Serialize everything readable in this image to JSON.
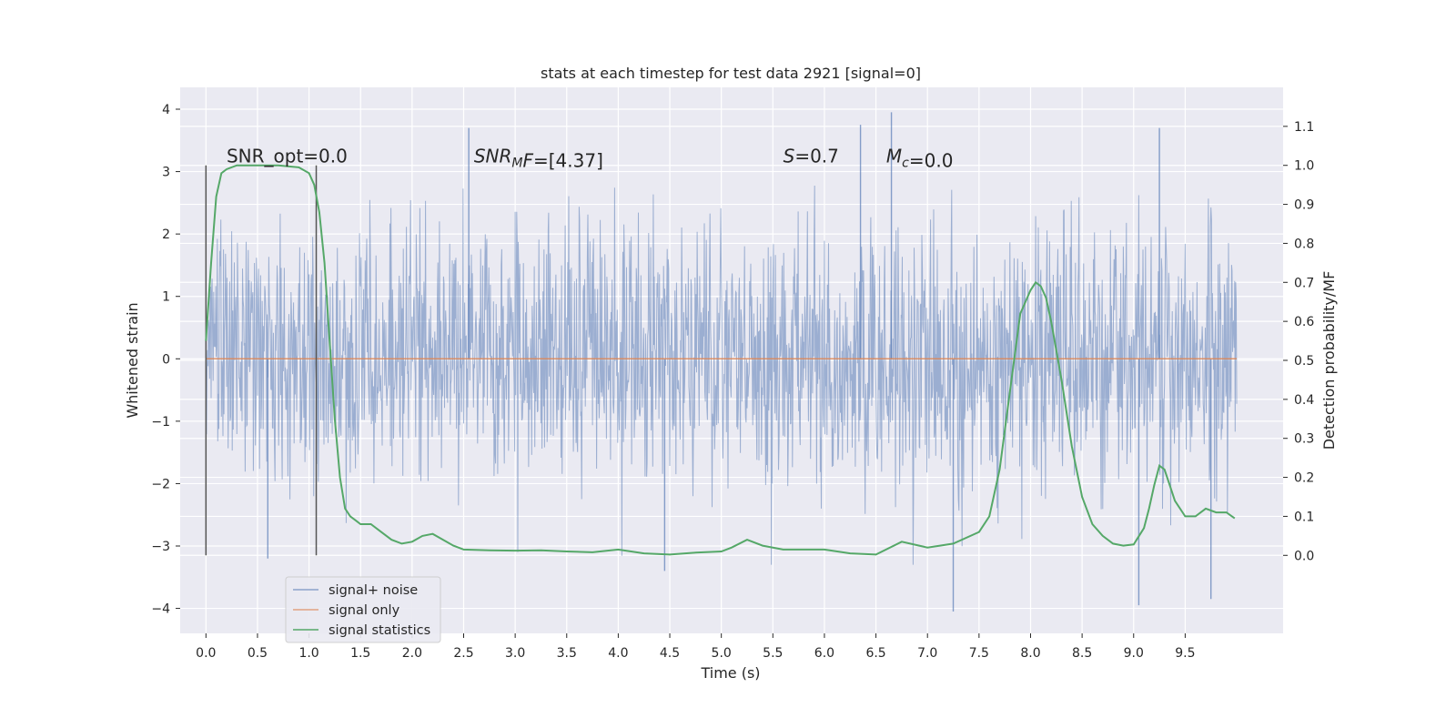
{
  "chart_data": {
    "type": "line",
    "title": "stats at each timestep for test data 2921 [signal=0]",
    "xlabel": "Time (s)",
    "ylabel_left": "Whitened strain",
    "ylabel_right": "Detection probability/MF",
    "xlim": [
      -0.25,
      10.45
    ],
    "ylim_left": [
      -4.4,
      4.35
    ],
    "ylim_right": [
      -0.2,
      1.2
    ],
    "x_ticks": [
      0.0,
      0.5,
      1.0,
      1.5,
      2.0,
      2.5,
      3.0,
      3.5,
      4.0,
      4.5,
      5.0,
      5.5,
      6.0,
      6.5,
      7.0,
      7.5,
      8.0,
      8.5,
      9.0,
      9.5
    ],
    "x_tick_labels": [
      "0.0",
      "0.5",
      "1.0",
      "1.5",
      "2.0",
      "2.5",
      "3.0",
      "3.5",
      "4.0",
      "4.5",
      "5.0",
      "5.5",
      "6.0",
      "6.5",
      "7.0",
      "7.5",
      "8.0",
      "8.5",
      "9.0",
      "9.5"
    ],
    "y_left_ticks": [
      -4,
      -3,
      -2,
      -1,
      0,
      1,
      2,
      3,
      4
    ],
    "y_left_tick_labels": [
      "−4",
      "−3",
      "−2",
      "−1",
      "0",
      "1",
      "2",
      "3",
      "4"
    ],
    "y_right_ticks": [
      0.0,
      0.1,
      0.2,
      0.3,
      0.4,
      0.5,
      0.6,
      0.7,
      0.8,
      0.9,
      1.0,
      1.1
    ],
    "y_right_tick_labels": [
      "0.0",
      "0.1",
      "0.2",
      "0.3",
      "0.4",
      "0.5",
      "0.6",
      "0.7",
      "0.8",
      "0.9",
      "1.0",
      "1.1"
    ],
    "grid": true,
    "legend_position": "lower-left",
    "colors": {
      "background": "#eaeaf2",
      "grid": "#ffffff",
      "noise": "#4c72b0",
      "signal_only": "#dd8452",
      "statistics": "#55a868",
      "marker": "#555555"
    },
    "series": [
      {
        "name": "signal+ noise",
        "axis": "left",
        "description_visible": "dense whitened strain, mostly within ±1.2 with peaks to about ±3.9",
        "notable_peaks": [
          {
            "x": 2.55,
            "y": 3.7
          },
          {
            "x": 6.35,
            "y": 3.75
          },
          {
            "x": 6.65,
            "y": 3.95
          },
          {
            "x": 9.25,
            "y": 3.7
          },
          {
            "x": 0.6,
            "y": -3.2
          },
          {
            "x": 4.45,
            "y": -3.4
          },
          {
            "x": 7.25,
            "y": -4.05
          },
          {
            "x": 9.05,
            "y": -3.95
          },
          {
            "x": 9.75,
            "y": -3.85
          }
        ]
      },
      {
        "name": "signal only",
        "axis": "left",
        "x": [
          0.0,
          10.0
        ],
        "y": [
          0.0,
          0.0
        ]
      },
      {
        "name": "signal statistics",
        "axis": "right",
        "x": [
          0.0,
          0.05,
          0.1,
          0.15,
          0.2,
          0.3,
          0.5,
          0.7,
          0.9,
          1.0,
          1.05,
          1.1,
          1.15,
          1.2,
          1.25,
          1.3,
          1.35,
          1.4,
          1.45,
          1.5,
          1.6,
          1.7,
          1.8,
          1.9,
          2.0,
          2.1,
          2.2,
          2.3,
          2.4,
          2.5,
          2.75,
          3.0,
          3.25,
          3.5,
          3.75,
          4.0,
          4.25,
          4.5,
          4.75,
          5.0,
          5.1,
          5.25,
          5.4,
          5.6,
          6.0,
          6.25,
          6.5,
          6.75,
          7.0,
          7.25,
          7.5,
          7.6,
          7.7,
          7.8,
          7.9,
          8.0,
          8.05,
          8.1,
          8.15,
          8.2,
          8.3,
          8.4,
          8.5,
          8.6,
          8.7,
          8.8,
          8.9,
          9.0,
          9.1,
          9.15,
          9.2,
          9.25,
          9.3,
          9.35,
          9.4,
          9.5,
          9.6,
          9.7,
          9.8,
          9.9,
          9.98
        ],
        "y": [
          0.55,
          0.75,
          0.92,
          0.98,
          0.99,
          1.0,
          1.0,
          1.0,
          0.995,
          0.98,
          0.95,
          0.88,
          0.75,
          0.55,
          0.35,
          0.2,
          0.12,
          0.1,
          0.09,
          0.08,
          0.08,
          0.06,
          0.04,
          0.03,
          0.035,
          0.05,
          0.055,
          0.04,
          0.025,
          0.015,
          0.013,
          0.012,
          0.013,
          0.01,
          0.008,
          0.015,
          0.005,
          0.002,
          0.007,
          0.01,
          0.02,
          0.04,
          0.025,
          0.015,
          0.015,
          0.005,
          0.002,
          0.035,
          0.02,
          0.03,
          0.06,
          0.1,
          0.22,
          0.42,
          0.62,
          0.68,
          0.7,
          0.69,
          0.66,
          0.6,
          0.45,
          0.28,
          0.15,
          0.08,
          0.05,
          0.03,
          0.025,
          0.028,
          0.07,
          0.12,
          0.18,
          0.23,
          0.22,
          0.18,
          0.14,
          0.1,
          0.1,
          0.12,
          0.11,
          0.11,
          0.095
        ]
      }
    ],
    "vertical_markers": [
      {
        "x": 0.0,
        "y_range": [
          -3.15,
          3.1
        ]
      },
      {
        "x": 1.07,
        "y_range": [
          -3.15,
          3.1
        ]
      }
    ],
    "annotations": [
      {
        "key": "snr_opt",
        "parts": [
          {
            "t": "SNR_opt=0.0"
          }
        ],
        "x": 0.2,
        "y": 3.25
      },
      {
        "key": "snr_mf",
        "parts": [
          {
            "t": "SNR",
            "it": true
          },
          {
            "t": "M",
            "it": true,
            "sub": true
          },
          {
            "t": "F",
            "it": true
          },
          {
            "t": "=[4.37]"
          }
        ],
        "x": 2.6,
        "y": 3.25
      },
      {
        "key": "s",
        "parts": [
          {
            "t": "S",
            "it": true
          },
          {
            "t": "=0.7"
          }
        ],
        "x": 5.6,
        "y": 3.25
      },
      {
        "key": "mc",
        "parts": [
          {
            "t": "M",
            "it": true
          },
          {
            "t": "c",
            "it": true,
            "sub": true
          },
          {
            "t": "=0.0"
          }
        ],
        "x": 6.6,
        "y": 3.25
      }
    ]
  }
}
